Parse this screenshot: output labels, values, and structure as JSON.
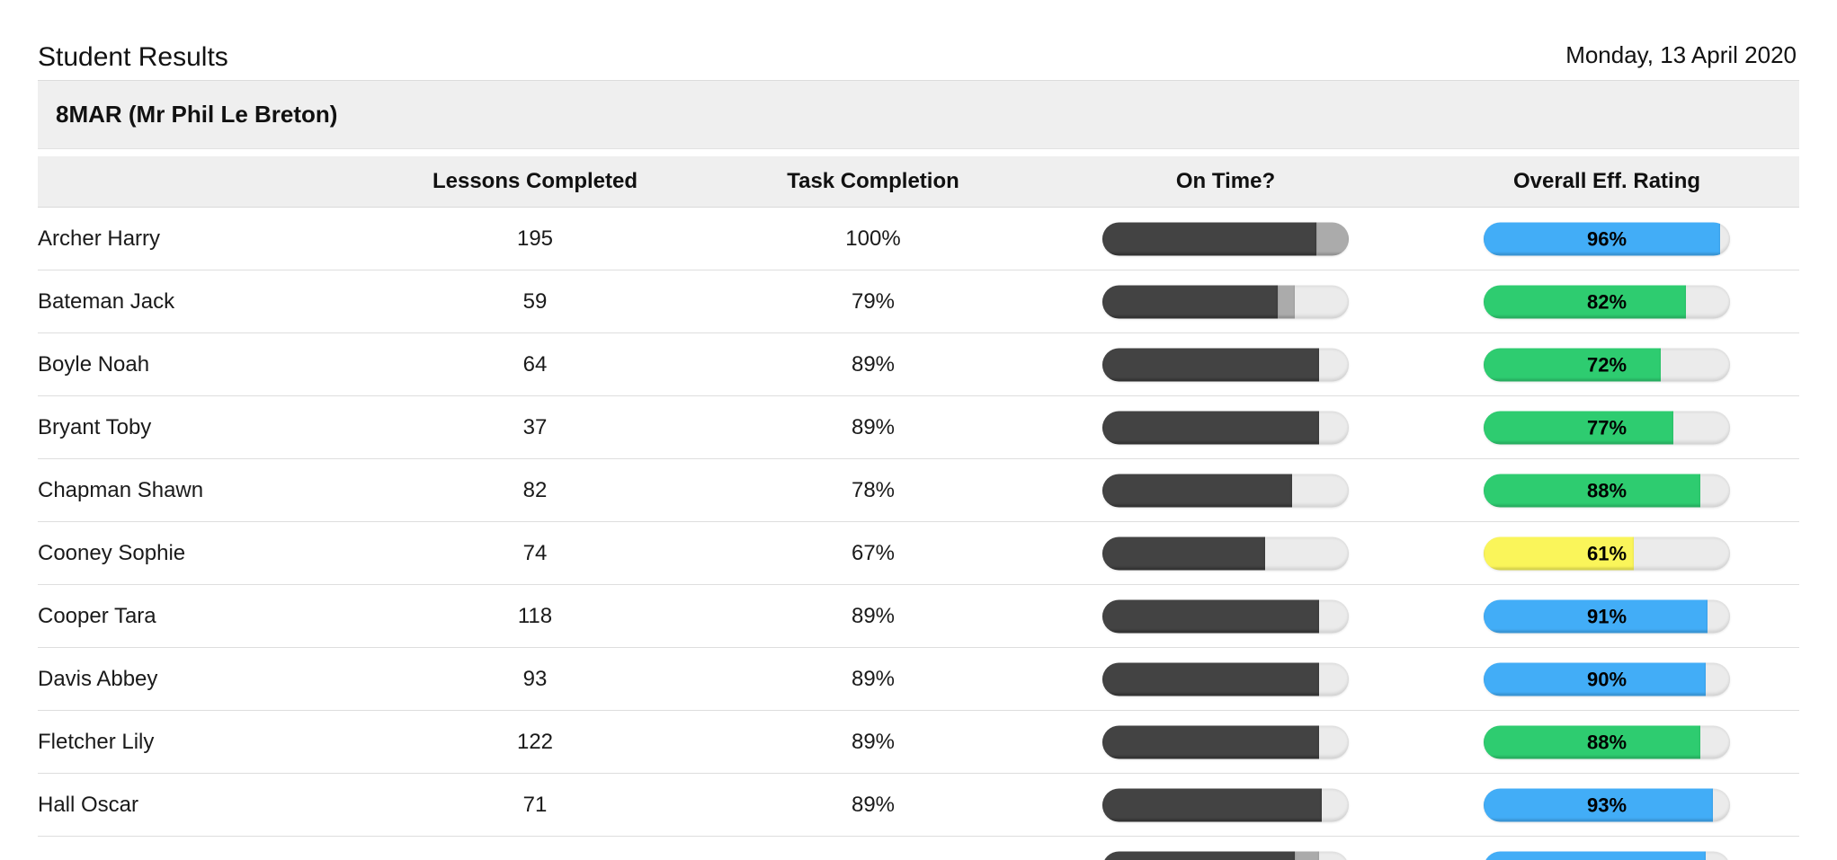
{
  "page": {
    "title": "Student Results",
    "date": "Monday, 13 April 2020"
  },
  "group": {
    "label": "8MAR (Mr Phil Le Breton)"
  },
  "colors": {
    "rating_blue": "#42adf7",
    "rating_green": "#2ecc70",
    "rating_yellow": "#faf55a",
    "on_time_dark": "#434343",
    "on_time_late": "#ababab",
    "bar_track": "#ebebeb",
    "band_bg": "#efefef"
  },
  "table": {
    "headers": {
      "student": "",
      "lessons": "Lessons Completed",
      "task": "Task Completion",
      "on_time": "On Time?",
      "rating": "Overall Eff. Rating"
    },
    "rows": [
      {
        "name": "Archer Harry",
        "lessons": "195",
        "task": "100%",
        "on_time": {
          "on_time_pct": 87,
          "late_pct": 13
        },
        "rating": {
          "pct": 96,
          "label": "96%",
          "color": "blue"
        }
      },
      {
        "name": "Bateman Jack",
        "lessons": "59",
        "task": "79%",
        "on_time": {
          "on_time_pct": 71,
          "late_pct": 7
        },
        "rating": {
          "pct": 82,
          "label": "82%",
          "color": "green"
        }
      },
      {
        "name": "Boyle Noah",
        "lessons": "64",
        "task": "89%",
        "on_time": {
          "on_time_pct": 88,
          "late_pct": 0
        },
        "rating": {
          "pct": 72,
          "label": "72%",
          "color": "green"
        }
      },
      {
        "name": "Bryant Toby",
        "lessons": "37",
        "task": "89%",
        "on_time": {
          "on_time_pct": 88,
          "late_pct": 0
        },
        "rating": {
          "pct": 77,
          "label": "77%",
          "color": "green"
        }
      },
      {
        "name": "Chapman Shawn",
        "lessons": "82",
        "task": "78%",
        "on_time": {
          "on_time_pct": 77,
          "late_pct": 0
        },
        "rating": {
          "pct": 88,
          "label": "88%",
          "color": "green"
        }
      },
      {
        "name": "Cooney Sophie",
        "lessons": "74",
        "task": "67%",
        "on_time": {
          "on_time_pct": 66,
          "late_pct": 0
        },
        "rating": {
          "pct": 61,
          "label": "61%",
          "color": "yellow"
        }
      },
      {
        "name": "Cooper Tara",
        "lessons": "118",
        "task": "89%",
        "on_time": {
          "on_time_pct": 88,
          "late_pct": 0
        },
        "rating": {
          "pct": 91,
          "label": "91%",
          "color": "blue"
        }
      },
      {
        "name": "Davis Abbey",
        "lessons": "93",
        "task": "89%",
        "on_time": {
          "on_time_pct": 88,
          "late_pct": 0
        },
        "rating": {
          "pct": 90,
          "label": "90%",
          "color": "blue"
        }
      },
      {
        "name": "Fletcher Lily",
        "lessons": "122",
        "task": "89%",
        "on_time": {
          "on_time_pct": 88,
          "late_pct": 0
        },
        "rating": {
          "pct": 88,
          "label": "88%",
          "color": "green"
        }
      },
      {
        "name": "Hall Oscar",
        "lessons": "71",
        "task": "89%",
        "on_time": {
          "on_time_pct": 89,
          "late_pct": 0
        },
        "rating": {
          "pct": 93,
          "label": "93%",
          "color": "blue"
        }
      },
      {
        "partial": true,
        "name": "",
        "lessons": "",
        "task": "",
        "on_time": {
          "on_time_pct": 78,
          "late_pct": 10
        },
        "rating": {
          "pct": 90,
          "label": "",
          "color": "blue"
        }
      }
    ]
  }
}
